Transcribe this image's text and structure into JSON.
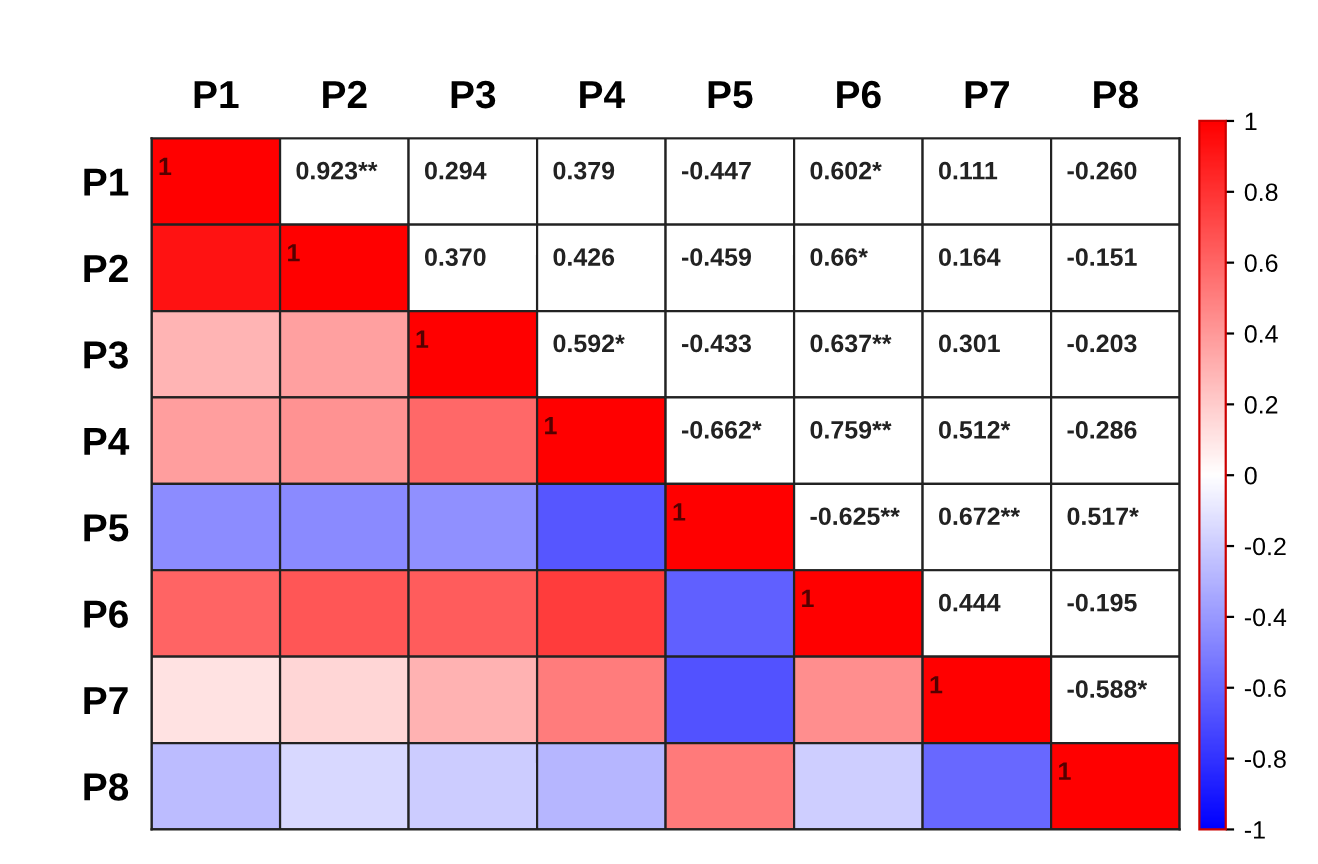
{
  "chart_data": {
    "type": "heatmap",
    "categories": [
      "P1",
      "P2",
      "P3",
      "P4",
      "P5",
      "P6",
      "P7",
      "P8"
    ],
    "y_categories": [
      "P1",
      "P2",
      "P3",
      "P4",
      "P5",
      "P6",
      "P7",
      "P8"
    ],
    "cells": [
      [
        1,
        null,
        null,
        null,
        null,
        null,
        null,
        null
      ],
      [
        0.923,
        1,
        null,
        null,
        null,
        null,
        null,
        null
      ],
      [
        0.294,
        0.37,
        1,
        null,
        null,
        null,
        null,
        null
      ],
      [
        0.379,
        0.426,
        0.592,
        1,
        null,
        null,
        null,
        null
      ],
      [
        -0.447,
        -0.459,
        -0.433,
        -0.662,
        1,
        null,
        null,
        null
      ],
      [
        0.602,
        0.66,
        0.637,
        0.759,
        -0.625,
        1,
        null,
        null
      ],
      [
        0.111,
        0.164,
        0.301,
        0.512,
        -0.672,
        0.444,
        1,
        null
      ],
      [
        -0.26,
        -0.151,
        -0.203,
        -0.286,
        0.517,
        -0.195,
        -0.588,
        1
      ]
    ],
    "cell_labels": [
      [
        "1",
        "0.923**",
        "0.294",
        "0.379",
        "-0.447",
        "0.602*",
        "0.111",
        "-0.260"
      ],
      [
        null,
        "1",
        "0.370",
        "0.426",
        "-0.459",
        "0.66*",
        "0.164",
        "-0.151"
      ],
      [
        null,
        null,
        "1",
        "0.592*",
        "-0.433",
        "0.637**",
        "0.301",
        "-0.203"
      ],
      [
        null,
        null,
        null,
        "1",
        "-0.662*",
        "0.759**",
        "0.512*",
        "-0.286"
      ],
      [
        null,
        null,
        null,
        null,
        "1",
        "-0.625**",
        "0.672**",
        "0.517*"
      ],
      [
        null,
        null,
        null,
        null,
        null,
        "1",
        "0.444",
        "-0.195"
      ],
      [
        null,
        null,
        null,
        null,
        null,
        null,
        "1",
        "-0.588*"
      ],
      [
        null,
        null,
        null,
        null,
        null,
        null,
        null,
        "1"
      ]
    ],
    "clim": [
      -1,
      1
    ],
    "cticks": [
      1,
      0.8,
      0.6,
      0.4,
      0.2,
      0,
      -0.2,
      -0.4,
      -0.6,
      -0.8,
      -1
    ]
  }
}
